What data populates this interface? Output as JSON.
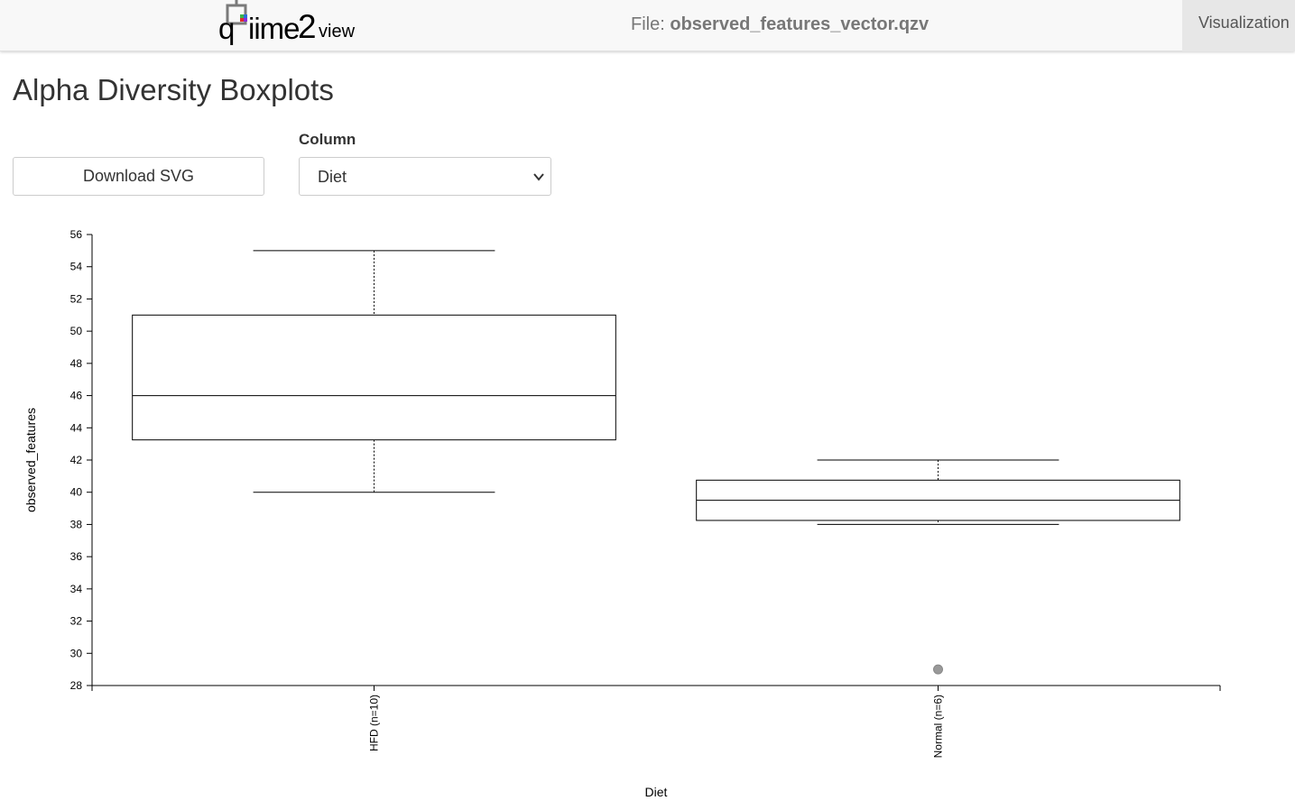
{
  "header": {
    "logo": {
      "part1": "q",
      "part2": "iime",
      "part3": "2",
      "part4": "view",
      "icon": "qiime2-logo-icon"
    },
    "file_prefix": "File:",
    "file_name": "observed_features_vector.qzv",
    "nav_tab": "Visualization"
  },
  "main": {
    "title": "Alpha Diversity Boxplots",
    "download_label": "Download SVG",
    "column_label": "Column",
    "column_value": "Diet",
    "column_icon": "chevron-down-icon"
  },
  "chart_data": {
    "type": "boxplot",
    "xlabel": "Diet",
    "ylabel": "observed_features",
    "ylim": [
      28,
      56
    ],
    "yticks": [
      28,
      30,
      32,
      34,
      36,
      38,
      40,
      42,
      44,
      46,
      48,
      50,
      52,
      54,
      56
    ],
    "grid": false,
    "categories": [
      "HFD (n=10)",
      "Normal (n=6)"
    ],
    "boxes": [
      {
        "category": "HFD (n=10)",
        "whisker_low": 40,
        "q1": 43.25,
        "median": 46,
        "q3": 51,
        "whisker_high": 55,
        "outliers": []
      },
      {
        "category": "Normal (n=6)",
        "whisker_low": 38,
        "q1": 38.25,
        "median": 39.5,
        "q3": 40.75,
        "whisker_high": 42,
        "outliers": [
          29
        ]
      }
    ],
    "colors": {
      "outlier": "#999999",
      "stroke": "#000000"
    }
  }
}
